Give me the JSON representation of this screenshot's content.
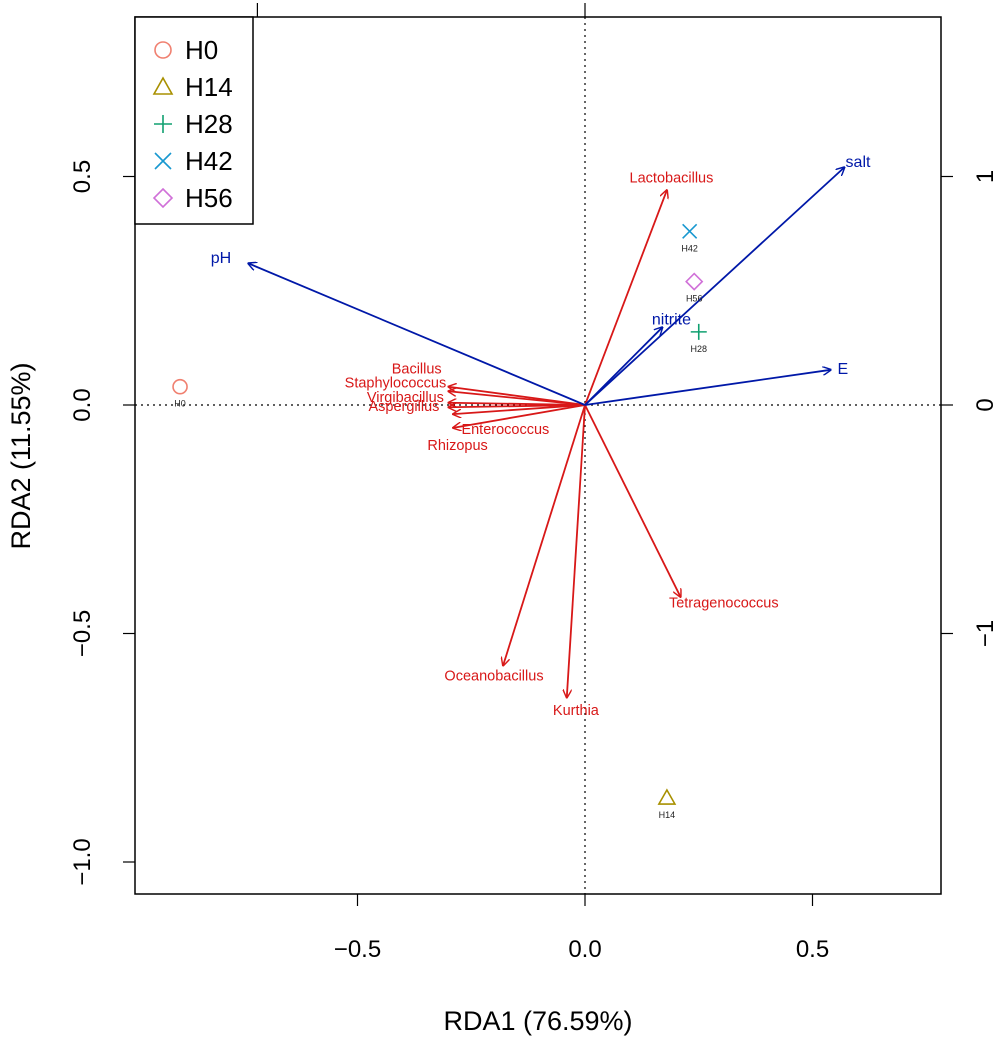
{
  "chart_data": {
    "type": "scatter",
    "title": "",
    "xlabel": "RDA1 (76.59%)",
    "ylabel": "RDA2 (11.55%)",
    "xlim": [
      -1.0,
      0.77
    ],
    "ylim": [
      -1.07,
      0.88
    ],
    "x_ticks": [
      {
        "v": -0.5,
        "label": "−0.5"
      },
      {
        "v": 0.0,
        "label": "0.0"
      },
      {
        "v": 0.5,
        "label": "0.5"
      }
    ],
    "y_ticks": [
      {
        "v": -1.0,
        "label": "−1.0"
      },
      {
        "v": -0.5,
        "label": "−0.5"
      },
      {
        "v": 0.0,
        "label": "0.0"
      },
      {
        "v": 0.5,
        "label": "0.5"
      }
    ],
    "right_ticks": [
      {
        "v": 1.0,
        "label": "1"
      },
      {
        "v": 0.0,
        "label": "0"
      },
      {
        "v": -1.0,
        "label": "−1"
      }
    ],
    "right_scale": 0.5,
    "top_ticks": [
      -0.72,
      0.0
    ],
    "colors": {
      "H0": "#F08070",
      "H14": "#A89000",
      "H28": "#10A070",
      "H42": "#1898D0",
      "H56": "#D070D8",
      "env": "#0018A8",
      "species": "#D81818"
    },
    "legend": {
      "placement": "top-left",
      "entries": [
        {
          "name": "H0",
          "symbol": "circle"
        },
        {
          "name": "H14",
          "symbol": "triangle"
        },
        {
          "name": "H28",
          "symbol": "plus"
        },
        {
          "name": "H42",
          "symbol": "cross"
        },
        {
          "name": "H56",
          "symbol": "diamond"
        }
      ]
    },
    "samples": [
      {
        "name": "H0",
        "label": "H0",
        "x": -0.89,
        "y": 0.04,
        "symbol": "circle"
      },
      {
        "name": "H14",
        "label": "H14",
        "x": 0.18,
        "y": -0.86,
        "symbol": "triangle"
      },
      {
        "name": "H28",
        "label": "H28",
        "x": 0.25,
        "y": 0.16,
        "symbol": "plus"
      },
      {
        "name": "H42",
        "label": "H42",
        "x": 0.23,
        "y": 0.38,
        "symbol": "cross"
      },
      {
        "name": "H56",
        "label": "H56",
        "x": 0.24,
        "y": 0.27,
        "symbol": "diamond"
      }
    ],
    "env_vectors": [
      {
        "name": "pH",
        "x": -0.74,
        "y": 0.31,
        "lx": -0.8,
        "ly": 0.32,
        "anchor": "middle"
      },
      {
        "name": "salt",
        "x": 0.57,
        "y": 0.52,
        "lx": 0.6,
        "ly": 0.53,
        "anchor": "middle"
      },
      {
        "name": "nitrite",
        "x": 0.17,
        "y": 0.17,
        "lx": 0.19,
        "ly": 0.185,
        "anchor": "middle"
      },
      {
        "name": "E",
        "x": 0.54,
        "y": 0.077,
        "lx": 0.555,
        "ly": 0.077,
        "anchor": "start"
      }
    ],
    "species_vectors": [
      {
        "name": "Lactobacillus",
        "x": 0.18,
        "y": 0.47,
        "lx": 0.19,
        "ly": 0.495,
        "anchor": "middle"
      },
      {
        "name": "Bacillus",
        "x": -0.3,
        "y": 0.04,
        "lx": -0.315,
        "ly": 0.077,
        "anchor": "end"
      },
      {
        "name": "Staphylococcus",
        "x": -0.3,
        "y": 0.03,
        "lx": -0.305,
        "ly": 0.047,
        "anchor": "end"
      },
      {
        "name": "Virgibacillus",
        "x": -0.3,
        "y": 0.005,
        "lx": -0.31,
        "ly": 0.015,
        "anchor": "end"
      },
      {
        "name": "Aspergillus",
        "x": -0.3,
        "y": -0.005,
        "lx": -0.32,
        "ly": -0.005,
        "anchor": "end"
      },
      {
        "name": "Enterococcus",
        "x": -0.29,
        "y": -0.02,
        "lx": -0.175,
        "ly": -0.055,
        "anchor": "middle"
      },
      {
        "name": "Rhizopus",
        "x": -0.29,
        "y": -0.05,
        "lx": -0.28,
        "ly": -0.09,
        "anchor": "middle"
      },
      {
        "name": "Tetragenococcus",
        "x": 0.21,
        "y": -0.42,
        "lx": 0.305,
        "ly": -0.435,
        "anchor": "middle"
      },
      {
        "name": "Oceanobacillus",
        "x": -0.18,
        "y": -0.57,
        "lx": -0.2,
        "ly": -0.595,
        "anchor": "middle"
      },
      {
        "name": "Kurthia",
        "x": -0.04,
        "y": -0.64,
        "lx": -0.02,
        "ly": -0.67,
        "anchor": "middle"
      }
    ]
  }
}
